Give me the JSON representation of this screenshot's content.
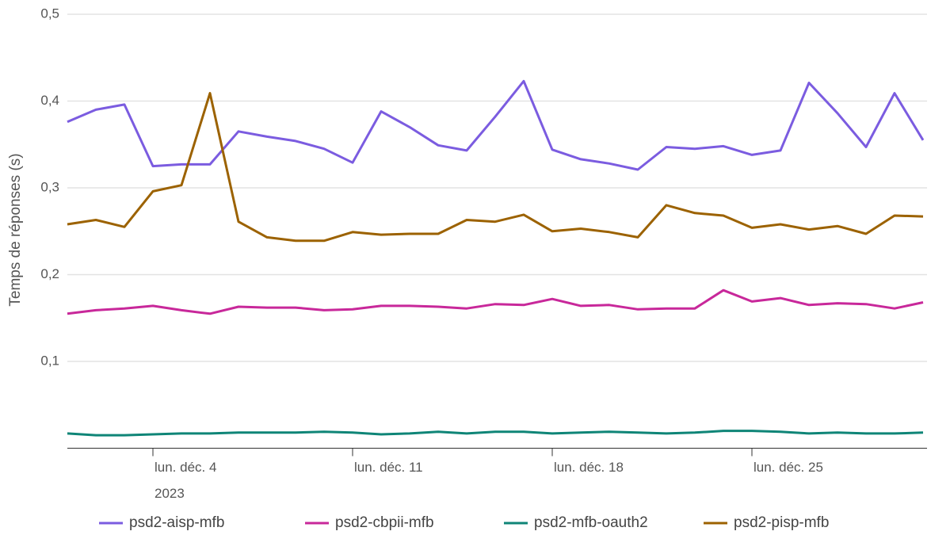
{
  "chart_data": {
    "type": "line",
    "y_label": "Temps de réponses (s)",
    "x": [
      "2023-12-01",
      "2023-12-02",
      "2023-12-03",
      "2023-12-04",
      "2023-12-05",
      "2023-12-06",
      "2023-12-07",
      "2023-12-08",
      "2023-12-09",
      "2023-12-10",
      "2023-12-11",
      "2023-12-12",
      "2023-12-13",
      "2023-12-14",
      "2023-12-15",
      "2023-12-16",
      "2023-12-17",
      "2023-12-18",
      "2023-12-19",
      "2023-12-20",
      "2023-12-21",
      "2023-12-22",
      "2023-12-23",
      "2023-12-24",
      "2023-12-25",
      "2023-12-26",
      "2023-12-27",
      "2023-12-28",
      "2023-12-29",
      "2023-12-30",
      "2023-12-31"
    ],
    "xlim": [
      "2023-12-01",
      "2023-12-31"
    ],
    "xticks": [
      {
        "value": "2023-12-04",
        "label": "lun. déc. 4"
      },
      {
        "value": "2023-12-11",
        "label": "lun. déc. 11"
      },
      {
        "value": "2023-12-18",
        "label": "lun. déc. 18"
      },
      {
        "value": "2023-12-25",
        "label": "lun. déc. 25"
      }
    ],
    "x_year_label": "2023",
    "ylim": [
      0,
      0.5
    ],
    "yticks": [
      {
        "value": 0.1,
        "label": "0,1"
      },
      {
        "value": 0.2,
        "label": "0,2"
      },
      {
        "value": 0.3,
        "label": "0,3"
      },
      {
        "value": 0.4,
        "label": "0,4"
      },
      {
        "value": 0.5,
        "label": "0,5"
      }
    ],
    "grid": true,
    "legend": "bottom",
    "series": [
      {
        "name": "psd2-aisp-mfb",
        "color": "#7b5ce0",
        "values": [
          0.376,
          0.39,
          0.396,
          0.325,
          0.327,
          0.327,
          0.365,
          0.359,
          0.354,
          0.345,
          0.329,
          0.388,
          0.37,
          0.349,
          0.343,
          0.382,
          0.423,
          0.344,
          0.333,
          0.328,
          0.321,
          0.347,
          0.345,
          0.348,
          0.338,
          0.343,
          0.421,
          0.386,
          0.347,
          0.409,
          0.355
        ]
      },
      {
        "name": "psd2-cbpii-mfb",
        "color": "#c8289a",
        "values": [
          0.155,
          0.159,
          0.161,
          0.164,
          0.159,
          0.155,
          0.163,
          0.162,
          0.162,
          0.159,
          0.16,
          0.164,
          0.164,
          0.163,
          0.161,
          0.166,
          0.165,
          0.172,
          0.164,
          0.165,
          0.16,
          0.161,
          0.161,
          0.182,
          0.169,
          0.173,
          0.165,
          0.167,
          0.166,
          0.161,
          0.168
        ]
      },
      {
        "name": "psd2-mfb-oauth2",
        "color": "#0f8577",
        "values": [
          0.017,
          0.015,
          0.015,
          0.016,
          0.017,
          0.017,
          0.018,
          0.018,
          0.018,
          0.019,
          0.018,
          0.016,
          0.017,
          0.019,
          0.017,
          0.019,
          0.019,
          0.017,
          0.018,
          0.019,
          0.018,
          0.017,
          0.018,
          0.02,
          0.02,
          0.019,
          0.017,
          0.018,
          0.017,
          0.017,
          0.018
        ]
      },
      {
        "name": "psd2-pisp-mfb",
        "color": "#9c6200",
        "values": [
          0.258,
          0.263,
          0.255,
          0.296,
          0.303,
          0.409,
          0.261,
          0.243,
          0.239,
          0.239,
          0.249,
          0.246,
          0.247,
          0.247,
          0.263,
          0.261,
          0.269,
          0.25,
          0.253,
          0.249,
          0.243,
          0.28,
          0.271,
          0.268,
          0.254,
          0.258,
          0.252,
          0.256,
          0.247,
          0.268,
          0.267
        ]
      }
    ]
  }
}
